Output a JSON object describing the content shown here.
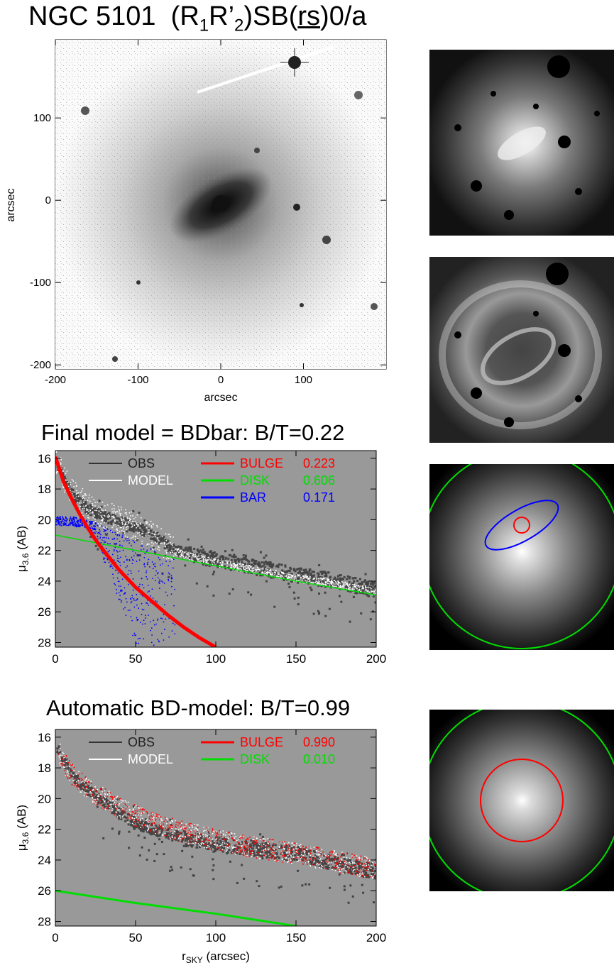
{
  "title": {
    "name": "NGC 5101",
    "classification_prefix": "(R",
    "sub1": "1",
    "mid": "R’",
    "sub2": "2",
    "mid2": ")SB(",
    "rs": "rs",
    "suffix": ")0/a"
  },
  "chart_data": [
    {
      "type": "image",
      "panel": "galaxy-image",
      "xlabel": "arcsec",
      "ylabel": "arcsec",
      "xlim": [
        -200,
        200
      ],
      "ylim": [
        -205,
        195
      ],
      "xticks": [
        "-200",
        "-100",
        "0",
        "100"
      ],
      "yticks": [
        "100",
        "0",
        "-100",
        "-200"
      ],
      "xtick_values": [
        -200,
        -100,
        0,
        100
      ],
      "ytick_values": [
        100,
        0,
        -100,
        -200
      ]
    },
    {
      "type": "scatter",
      "panel": "final-model",
      "title": "Final model = BDbar: B/T=0.22",
      "xlabel": "",
      "ylabel_main": "μ",
      "ylabel_sub": "3.6",
      "ylabel_unit": " (AB)",
      "xlim": [
        0,
        200
      ],
      "ylim": [
        28.3,
        15.5
      ],
      "xticks": [
        "0",
        "50",
        "100",
        "150",
        "200"
      ],
      "yticks": [
        "16",
        "18",
        "20",
        "22",
        "24",
        "26",
        "28"
      ],
      "legend": [
        {
          "label": "OBS",
          "value": "",
          "color": "#333333"
        },
        {
          "label": "MODEL",
          "value": "",
          "color": "#ffffff"
        },
        {
          "label": "BULGE",
          "value": "0.223",
          "color": "#ff0000"
        },
        {
          "label": "DISK",
          "value": "0.606",
          "color": "#00dd00"
        },
        {
          "label": "BAR",
          "value": "0.171",
          "color": "#0000ff"
        }
      ],
      "series": [
        {
          "name": "BULGE",
          "x": [
            0,
            5,
            10,
            15,
            20,
            25,
            30,
            40,
            50,
            60,
            70,
            80,
            90,
            100
          ],
          "y": [
            15.9,
            17.5,
            18.6,
            19.6,
            20.5,
            21.3,
            22.0,
            23.3,
            24.4,
            25.3,
            26.2,
            27.0,
            27.7,
            28.3
          ]
        },
        {
          "name": "DISK",
          "x": [
            0,
            50,
            100,
            150,
            200
          ],
          "y": [
            21.0,
            22.0,
            23.0,
            24.0,
            24.9
          ]
        },
        {
          "name": "BAR",
          "x": [
            0,
            10,
            20,
            30,
            40,
            50,
            60,
            65
          ],
          "y": [
            19.8,
            19.8,
            20.0,
            20.4,
            20.9,
            21.4,
            21.8,
            22.1
          ]
        },
        {
          "name": "OBS",
          "x": [
            0,
            5,
            10,
            20,
            30,
            40,
            50,
            60,
            70,
            80,
            100,
            120,
            150,
            170,
            200
          ],
          "y": [
            16.0,
            17.3,
            18.3,
            19.3,
            19.8,
            20.1,
            20.5,
            20.9,
            21.7,
            22.2,
            22.6,
            23.0,
            23.6,
            23.9,
            24.6
          ]
        },
        {
          "name": "MODEL",
          "x": [
            0,
            5,
            10,
            20,
            30,
            40,
            50,
            60,
            70,
            80,
            100,
            120,
            150,
            170,
            200
          ],
          "y": [
            16.0,
            17.2,
            18.1,
            19.2,
            19.7,
            20.0,
            20.5,
            21.0,
            21.8,
            22.3,
            22.8,
            23.2,
            23.8,
            24.1,
            24.7
          ]
        }
      ]
    },
    {
      "type": "scatter",
      "panel": "automatic-bd-model",
      "title": "Automatic BD-model: B/T=0.99",
      "xlabel_main": "r",
      "xlabel_sub": "SKY",
      "xlabel_unit": " (arcsec)",
      "ylabel_main": "μ",
      "ylabel_sub": "3.6",
      "ylabel_unit": " (AB)",
      "xlim": [
        0,
        200
      ],
      "ylim": [
        28.3,
        15.5
      ],
      "xticks": [
        "0",
        "50",
        "100",
        "150",
        "200"
      ],
      "yticks": [
        "16",
        "18",
        "20",
        "22",
        "24",
        "26",
        "28"
      ],
      "legend": [
        {
          "label": "OBS",
          "value": "",
          "color": "#333333"
        },
        {
          "label": "MODEL",
          "value": "",
          "color": "#ffffff"
        },
        {
          "label": "BULGE",
          "value": "0.990",
          "color": "#ff0000"
        },
        {
          "label": "DISK",
          "value": "0.010",
          "color": "#00dd00"
        }
      ],
      "series": [
        {
          "name": "BULGE",
          "x": [
            2,
            5,
            10,
            20,
            30,
            40,
            50,
            60,
            80,
            100,
            120,
            150,
            170,
            200
          ],
          "y": [
            16.9,
            17.6,
            18.4,
            19.3,
            20.0,
            20.6,
            21.1,
            21.5,
            22.2,
            22.7,
            23.1,
            23.6,
            24.0,
            24.6
          ]
        },
        {
          "name": "DISK",
          "x": [
            0,
            50,
            100,
            150
          ],
          "y": [
            26.0,
            26.8,
            27.5,
            28.3
          ]
        },
        {
          "name": "OBS",
          "x": [
            2,
            10,
            20,
            30,
            40,
            50,
            60,
            80,
            100,
            120,
            150,
            170,
            200
          ],
          "y": [
            16.8,
            18.5,
            19.4,
            20.2,
            21.0,
            21.6,
            22.0,
            22.6,
            23.0,
            23.2,
            23.6,
            24.1,
            24.8
          ]
        }
      ]
    }
  ],
  "colors": {
    "plot_background": "#999999",
    "obs": "#444444",
    "model": "#ffffff",
    "bulge": "#ff0000",
    "disk": "#00dd00",
    "bar": "#0000ff"
  }
}
